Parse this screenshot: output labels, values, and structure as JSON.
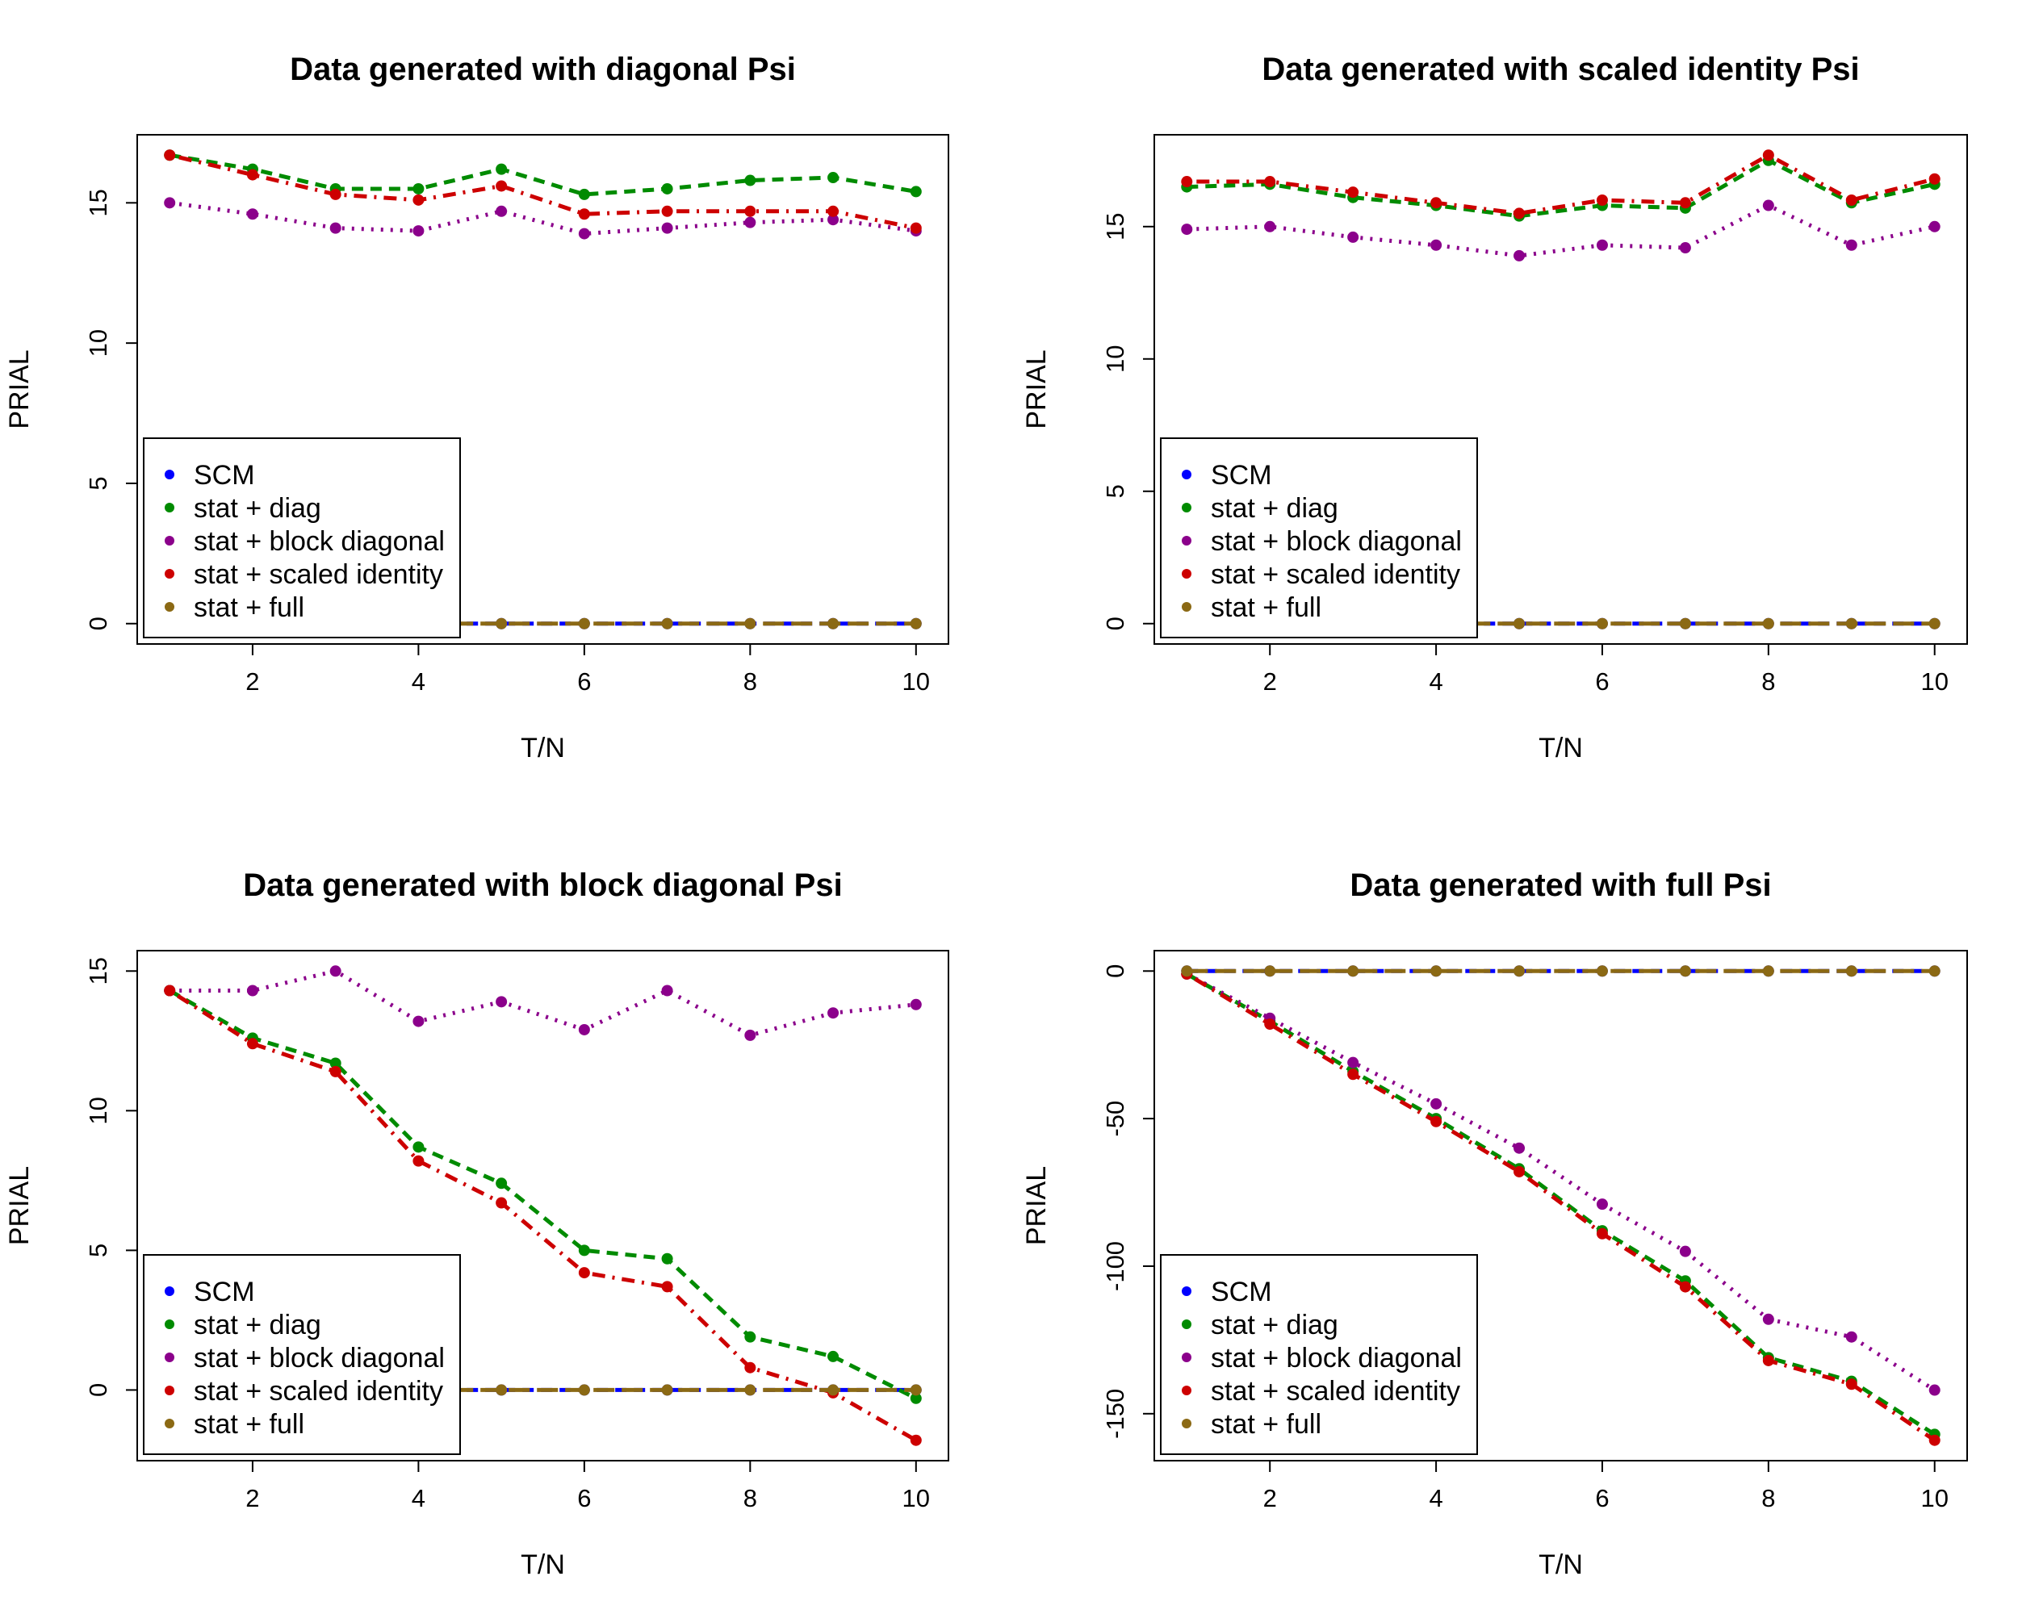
{
  "chart_data": [
    {
      "type": "line",
      "title": "Data generated with diagonal Psi",
      "xlabel": "T/N",
      "ylabel": "PRIAL",
      "xlim": [
        1,
        10
      ],
      "ylim": [
        0,
        16.7
      ],
      "xticks": [
        2,
        4,
        6,
        8,
        10
      ],
      "yticks": [
        0,
        5,
        10,
        15
      ],
      "legend_position": "bottom-left",
      "x": [
        1,
        2,
        3,
        4,
        5,
        6,
        7,
        8,
        9,
        10
      ],
      "series": [
        {
          "name": "SCM",
          "color": "#0000FF",
          "dash": "dashed",
          "values": [
            0,
            0,
            0,
            0,
            0,
            0,
            0,
            0,
            0,
            0
          ]
        },
        {
          "name": "stat + diag",
          "color": "#008B00",
          "dash": "dashed",
          "values": [
            16.7,
            16.2,
            15.5,
            15.5,
            16.2,
            15.3,
            15.5,
            15.8,
            15.9,
            15.4
          ]
        },
        {
          "name": "stat + block diagonal",
          "color": "#8B008B",
          "dash": "dotted",
          "values": [
            15.0,
            14.6,
            14.1,
            14.0,
            14.7,
            13.9,
            14.1,
            14.3,
            14.4,
            14.0
          ]
        },
        {
          "name": "stat + scaled identity",
          "color": "#CD0000",
          "dash": "dotdash",
          "values": [
            16.7,
            16.0,
            15.3,
            15.1,
            15.6,
            14.6,
            14.7,
            14.7,
            14.7,
            14.1
          ]
        },
        {
          "name": "stat + full",
          "color": "#8B6914",
          "dash": "longdash",
          "values": [
            0,
            0,
            0,
            0,
            0,
            0,
            0,
            0,
            0,
            0
          ]
        }
      ]
    },
    {
      "type": "line",
      "title": "Data generated with scaled identity Psi",
      "xlabel": "T/N",
      "ylabel": "PRIAL",
      "xlim": [
        1,
        10
      ],
      "ylim": [
        0,
        17.7
      ],
      "xticks": [
        2,
        4,
        6,
        8,
        10
      ],
      "yticks": [
        0,
        5,
        10,
        15
      ],
      "legend_position": "bottom-left",
      "x": [
        1,
        2,
        3,
        4,
        5,
        6,
        7,
        8,
        9,
        10
      ],
      "series": [
        {
          "name": "SCM",
          "color": "#0000FF",
          "dash": "dashed",
          "values": [
            0,
            0,
            0,
            0,
            0,
            0,
            0,
            0,
            0,
            0
          ]
        },
        {
          "name": "stat + diag",
          "color": "#008B00",
          "dash": "dashed",
          "values": [
            16.5,
            16.6,
            16.1,
            15.8,
            15.4,
            15.8,
            15.7,
            17.5,
            15.9,
            16.6
          ]
        },
        {
          "name": "stat + block diagonal",
          "color": "#8B008B",
          "dash": "dotted",
          "values": [
            14.9,
            15.0,
            14.6,
            14.3,
            13.9,
            14.3,
            14.2,
            15.8,
            14.3,
            15.0
          ]
        },
        {
          "name": "stat + scaled identity",
          "color": "#CD0000",
          "dash": "dotdash",
          "values": [
            16.7,
            16.7,
            16.3,
            15.9,
            15.5,
            16.0,
            15.9,
            17.7,
            16.0,
            16.8
          ]
        },
        {
          "name": "stat + full",
          "color": "#8B6914",
          "dash": "longdash",
          "values": [
            0,
            0,
            0,
            0,
            0,
            0,
            0,
            0,
            0,
            0
          ]
        }
      ]
    },
    {
      "type": "line",
      "title": "Data generated with block diagonal Psi",
      "xlabel": "T/N",
      "ylabel": "PRIAL",
      "xlim": [
        1,
        10
      ],
      "ylim": [
        -1.8,
        15.0
      ],
      "xticks": [
        2,
        4,
        6,
        8,
        10
      ],
      "yticks": [
        0,
        5,
        10,
        15
      ],
      "legend_position": "bottom-left",
      "x": [
        1,
        2,
        3,
        4,
        5,
        6,
        7,
        8,
        9,
        10
      ],
      "series": [
        {
          "name": "SCM",
          "color": "#0000FF",
          "dash": "dashed",
          "values": [
            0,
            0,
            0,
            0,
            0,
            0,
            0,
            0,
            0,
            0
          ]
        },
        {
          "name": "stat + diag",
          "color": "#008B00",
          "dash": "dashed",
          "values": [
            14.3,
            12.6,
            11.7,
            8.7,
            7.4,
            5.0,
            4.7,
            1.9,
            1.2,
            -0.3
          ]
        },
        {
          "name": "stat + block diagonal",
          "color": "#8B008B",
          "dash": "dotted",
          "values": [
            14.3,
            14.3,
            15.0,
            13.2,
            13.9,
            12.9,
            14.3,
            12.7,
            13.5,
            13.8
          ]
        },
        {
          "name": "stat + scaled identity",
          "color": "#CD0000",
          "dash": "dotdash",
          "values": [
            14.3,
            12.4,
            11.4,
            8.2,
            6.7,
            4.2,
            3.7,
            0.8,
            -0.1,
            -1.8
          ]
        },
        {
          "name": "stat + full",
          "color": "#8B6914",
          "dash": "longdash",
          "values": [
            0,
            0,
            0,
            0,
            0,
            0,
            0,
            0,
            0,
            0
          ]
        }
      ]
    },
    {
      "type": "line",
      "title": "Data generated with full Psi",
      "xlabel": "T/N",
      "ylabel": "PRIAL",
      "xlim": [
        1,
        10
      ],
      "ylim": [
        -159,
        0
      ],
      "xticks": [
        2,
        4,
        6,
        8,
        10
      ],
      "yticks": [
        0,
        -50,
        -100,
        -150
      ],
      "legend_position": "bottom-left",
      "x": [
        1,
        2,
        3,
        4,
        5,
        6,
        7,
        8,
        9,
        10
      ],
      "series": [
        {
          "name": "SCM",
          "color": "#0000FF",
          "dash": "dashed",
          "values": [
            0,
            0,
            0,
            0,
            0,
            0,
            0,
            0,
            0,
            0
          ]
        },
        {
          "name": "stat + diag",
          "color": "#008B00",
          "dash": "dashed",
          "values": [
            -1,
            -17,
            -34,
            -50,
            -67,
            -88,
            -105,
            -131,
            -139,
            -157
          ]
        },
        {
          "name": "stat + block diagonal",
          "color": "#8B008B",
          "dash": "dotted",
          "values": [
            -1,
            -16,
            -31,
            -45,
            -60,
            -79,
            -95,
            -118,
            -124,
            -142
          ]
        },
        {
          "name": "stat + scaled identity",
          "color": "#CD0000",
          "dash": "dotdash",
          "values": [
            -1,
            -18,
            -35,
            -51,
            -68,
            -89,
            -107,
            -132,
            -140,
            -159
          ]
        },
        {
          "name": "stat + full",
          "color": "#8B6914",
          "dash": "longdash",
          "values": [
            0,
            0,
            0,
            0,
            0,
            0,
            0,
            0,
            0,
            0
          ]
        }
      ]
    }
  ]
}
